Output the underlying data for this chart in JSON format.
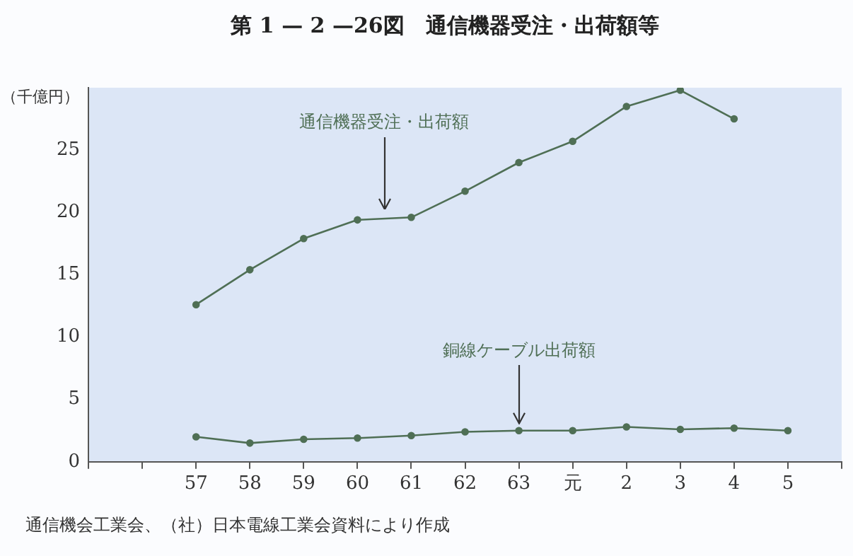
{
  "chart_data": {
    "type": "line",
    "title": "第 1 — 2 —26図　通信機器受注・出荷額等",
    "ylabel": "（千億円）",
    "categories": [
      null,
      null,
      "57",
      "58",
      "59",
      "60",
      "61",
      "62",
      "63",
      "元",
      "2",
      "3",
      "4",
      "5",
      null
    ],
    "series": [
      {
        "name": "通信機器受注・出荷額",
        "color": "#4f6f55",
        "values": [
          null,
          null,
          12.6,
          15.4,
          17.9,
          19.4,
          19.6,
          21.7,
          24.0,
          25.7,
          28.5,
          29.8,
          27.5,
          null,
          null
        ]
      },
      {
        "name": "銅線ケーブル出荷額",
        "color": "#4f6f55",
        "values": [
          null,
          null,
          2.0,
          1.5,
          1.8,
          1.9,
          2.1,
          2.4,
          2.5,
          2.5,
          2.8,
          2.6,
          2.7,
          2.5,
          null
        ]
      }
    ],
    "ylim": [
      0,
      30
    ],
    "yticks": [
      0,
      5,
      10,
      15,
      20,
      25
    ],
    "grid": false,
    "legend": false,
    "marker": "circle",
    "line_style": "solid",
    "annotations": [
      "通信機会工業会、（社）日本電線工業会資料により作成"
    ]
  }
}
